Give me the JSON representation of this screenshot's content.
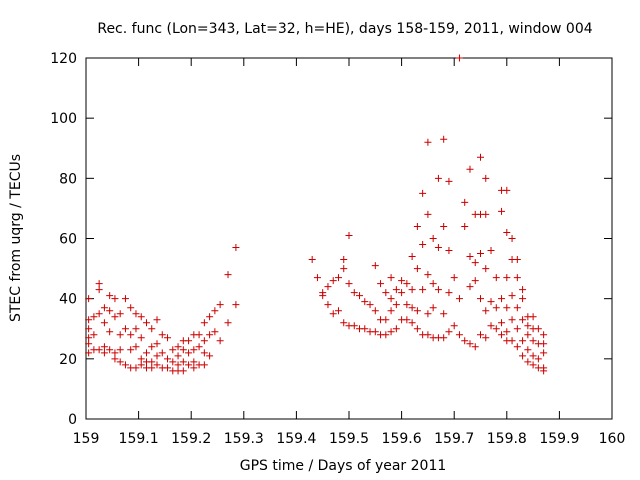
{
  "chart_data": {
    "type": "scatter",
    "title": "Rec. func (Lon=343, Lat=32, h=HE), days 158-159, 2011, window 004",
    "xlabel": "GPS time / Days of year 2011",
    "ylabel": "STEC from uqrg / TECUs",
    "xlim": [
      159,
      160
    ],
    "ylim": [
      0,
      120
    ],
    "xticks": [
      "159",
      "159.1",
      "159.2",
      "159.3",
      "159.4",
      "159.5",
      "159.6",
      "159.7",
      "159.8",
      "159.9",
      "160"
    ],
    "yticks": [
      "0",
      "20",
      "40",
      "60",
      "80",
      "100",
      "120"
    ],
    "grid": false,
    "legend": "none",
    "marker": "+",
    "color": "#cc0000",
    "points": [
      [
        159.005,
        40
      ],
      [
        159.005,
        33
      ],
      [
        159.005,
        30
      ],
      [
        159.005,
        27
      ],
      [
        159.005,
        25
      ],
      [
        159.005,
        22
      ],
      [
        159.015,
        34
      ],
      [
        159.015,
        28
      ],
      [
        159.015,
        23
      ],
      [
        159.025,
        45
      ],
      [
        159.025,
        43
      ],
      [
        159.025,
        35
      ],
      [
        159.025,
        23
      ],
      [
        159.035,
        37
      ],
      [
        159.035,
        32
      ],
      [
        159.035,
        24
      ],
      [
        159.035,
        22
      ],
      [
        159.045,
        41
      ],
      [
        159.045,
        36
      ],
      [
        159.045,
        29
      ],
      [
        159.045,
        23
      ],
      [
        159.055,
        40
      ],
      [
        159.055,
        34
      ],
      [
        159.055,
        22
      ],
      [
        159.055,
        20
      ],
      [
        159.065,
        35
      ],
      [
        159.065,
        28
      ],
      [
        159.065,
        23
      ],
      [
        159.065,
        19
      ],
      [
        159.075,
        40
      ],
      [
        159.075,
        30
      ],
      [
        159.075,
        18
      ],
      [
        159.085,
        37
      ],
      [
        159.085,
        28
      ],
      [
        159.085,
        23
      ],
      [
        159.085,
        17
      ],
      [
        159.095,
        35
      ],
      [
        159.095,
        30
      ],
      [
        159.095,
        24
      ],
      [
        159.095,
        17
      ],
      [
        159.105,
        34
      ],
      [
        159.105,
        27
      ],
      [
        159.105,
        20
      ],
      [
        159.105,
        18
      ],
      [
        159.115,
        32
      ],
      [
        159.115,
        22
      ],
      [
        159.115,
        19
      ],
      [
        159.115,
        17
      ],
      [
        159.125,
        30
      ],
      [
        159.125,
        24
      ],
      [
        159.125,
        19
      ],
      [
        159.125,
        17
      ],
      [
        159.135,
        33
      ],
      [
        159.135,
        25
      ],
      [
        159.135,
        21
      ],
      [
        159.135,
        18
      ],
      [
        159.145,
        28
      ],
      [
        159.145,
        22
      ],
      [
        159.145,
        17
      ],
      [
        159.155,
        27
      ],
      [
        159.155,
        20
      ],
      [
        159.155,
        17
      ],
      [
        159.165,
        23
      ],
      [
        159.165,
        19
      ],
      [
        159.165,
        16
      ],
      [
        159.175,
        24
      ],
      [
        159.175,
        21
      ],
      [
        159.175,
        18
      ],
      [
        159.175,
        16
      ],
      [
        159.185,
        26
      ],
      [
        159.185,
        23
      ],
      [
        159.185,
        19
      ],
      [
        159.185,
        16
      ],
      [
        159.195,
        26
      ],
      [
        159.195,
        22
      ],
      [
        159.195,
        18
      ],
      [
        159.205,
        28
      ],
      [
        159.205,
        23
      ],
      [
        159.205,
        19
      ],
      [
        159.205,
        17
      ],
      [
        159.215,
        28
      ],
      [
        159.215,
        24
      ],
      [
        159.215,
        18
      ],
      [
        159.225,
        32
      ],
      [
        159.225,
        26
      ],
      [
        159.225,
        22
      ],
      [
        159.225,
        18
      ],
      [
        159.235,
        34
      ],
      [
        159.235,
        28
      ],
      [
        159.235,
        21
      ],
      [
        159.245,
        36
      ],
      [
        159.245,
        29
      ],
      [
        159.255,
        38
      ],
      [
        159.255,
        26
      ],
      [
        159.27,
        48
      ],
      [
        159.27,
        32
      ],
      [
        159.285,
        57
      ],
      [
        159.285,
        38
      ],
      [
        159.43,
        53
      ],
      [
        159.44,
        47
      ],
      [
        159.45,
        42
      ],
      [
        159.45,
        41
      ],
      [
        159.46,
        44
      ],
      [
        159.46,
        38
      ],
      [
        159.47,
        46
      ],
      [
        159.47,
        35
      ],
      [
        159.48,
        47
      ],
      [
        159.48,
        36
      ],
      [
        159.49,
        53
      ],
      [
        159.49,
        50
      ],
      [
        159.49,
        32
      ],
      [
        159.5,
        61
      ],
      [
        159.5,
        45
      ],
      [
        159.5,
        31
      ],
      [
        159.51,
        42
      ],
      [
        159.51,
        31
      ],
      [
        159.52,
        41
      ],
      [
        159.52,
        30
      ],
      [
        159.53,
        39
      ],
      [
        159.53,
        30
      ],
      [
        159.54,
        38
      ],
      [
        159.54,
        29
      ],
      [
        159.55,
        51
      ],
      [
        159.55,
        36
      ],
      [
        159.55,
        29
      ],
      [
        159.56,
        45
      ],
      [
        159.56,
        33
      ],
      [
        159.56,
        28
      ],
      [
        159.57,
        42
      ],
      [
        159.57,
        33
      ],
      [
        159.57,
        28
      ],
      [
        159.58,
        47
      ],
      [
        159.58,
        40
      ],
      [
        159.58,
        36
      ],
      [
        159.58,
        29
      ],
      [
        159.59,
        43
      ],
      [
        159.59,
        38
      ],
      [
        159.59,
        30
      ],
      [
        159.6,
        46
      ],
      [
        159.6,
        42
      ],
      [
        159.6,
        33
      ],
      [
        159.61,
        45
      ],
      [
        159.61,
        38
      ],
      [
        159.61,
        33
      ],
      [
        159.62,
        54
      ],
      [
        159.62,
        43
      ],
      [
        159.62,
        37
      ],
      [
        159.62,
        32
      ],
      [
        159.63,
        64
      ],
      [
        159.63,
        50
      ],
      [
        159.63,
        36
      ],
      [
        159.63,
        30
      ],
      [
        159.64,
        75
      ],
      [
        159.64,
        58
      ],
      [
        159.64,
        43
      ],
      [
        159.64,
        28
      ],
      [
        159.65,
        92
      ],
      [
        159.65,
        68
      ],
      [
        159.65,
        48
      ],
      [
        159.65,
        35
      ],
      [
        159.65,
        28
      ],
      [
        159.66,
        60
      ],
      [
        159.66,
        45
      ],
      [
        159.66,
        37
      ],
      [
        159.66,
        27
      ],
      [
        159.67,
        80
      ],
      [
        159.67,
        57
      ],
      [
        159.67,
        43
      ],
      [
        159.67,
        27
      ],
      [
        159.68,
        93
      ],
      [
        159.68,
        64
      ],
      [
        159.68,
        35
      ],
      [
        159.68,
        27
      ],
      [
        159.69,
        79
      ],
      [
        159.69,
        56
      ],
      [
        159.69,
        42
      ],
      [
        159.69,
        29
      ],
      [
        159.7,
        47
      ],
      [
        159.7,
        31
      ],
      [
        159.71,
        120
      ],
      [
        159.71,
        40
      ],
      [
        159.71,
        28
      ],
      [
        159.72,
        72
      ],
      [
        159.72,
        64
      ],
      [
        159.72,
        26
      ],
      [
        159.73,
        83
      ],
      [
        159.73,
        54
      ],
      [
        159.73,
        44
      ],
      [
        159.73,
        25
      ],
      [
        159.74,
        68
      ],
      [
        159.74,
        52
      ],
      [
        159.74,
        46
      ],
      [
        159.74,
        24
      ],
      [
        159.75,
        87
      ],
      [
        159.75,
        68
      ],
      [
        159.75,
        55
      ],
      [
        159.75,
        40
      ],
      [
        159.75,
        28
      ],
      [
        159.76,
        80
      ],
      [
        159.76,
        68
      ],
      [
        159.76,
        50
      ],
      [
        159.76,
        36
      ],
      [
        159.76,
        27
      ],
      [
        159.77,
        56
      ],
      [
        159.77,
        39
      ],
      [
        159.77,
        31
      ],
      [
        159.78,
        47
      ],
      [
        159.78,
        37
      ],
      [
        159.78,
        30
      ],
      [
        159.79,
        76
      ],
      [
        159.79,
        69
      ],
      [
        159.79,
        40
      ],
      [
        159.79,
        32
      ],
      [
        159.79,
        28
      ],
      [
        159.8,
        76
      ],
      [
        159.8,
        62
      ],
      [
        159.8,
        47
      ],
      [
        159.8,
        37
      ],
      [
        159.8,
        29
      ],
      [
        159.8,
        26
      ],
      [
        159.81,
        60
      ],
      [
        159.81,
        53
      ],
      [
        159.81,
        41
      ],
      [
        159.81,
        33
      ],
      [
        159.81,
        26
      ],
      [
        159.82,
        53
      ],
      [
        159.82,
        47
      ],
      [
        159.82,
        37
      ],
      [
        159.82,
        30
      ],
      [
        159.82,
        24
      ],
      [
        159.83,
        43
      ],
      [
        159.83,
        40
      ],
      [
        159.83,
        33
      ],
      [
        159.83,
        26
      ],
      [
        159.83,
        21
      ],
      [
        159.84,
        34
      ],
      [
        159.84,
        31
      ],
      [
        159.84,
        28
      ],
      [
        159.84,
        23
      ],
      [
        159.84,
        19
      ],
      [
        159.85,
        34
      ],
      [
        159.85,
        30
      ],
      [
        159.85,
        26
      ],
      [
        159.85,
        21
      ],
      [
        159.85,
        18
      ],
      [
        159.86,
        30
      ],
      [
        159.86,
        25
      ],
      [
        159.86,
        20
      ],
      [
        159.86,
        17
      ],
      [
        159.87,
        28
      ],
      [
        159.87,
        25
      ],
      [
        159.87,
        22
      ],
      [
        159.87,
        17
      ],
      [
        159.87,
        16
      ]
    ]
  }
}
